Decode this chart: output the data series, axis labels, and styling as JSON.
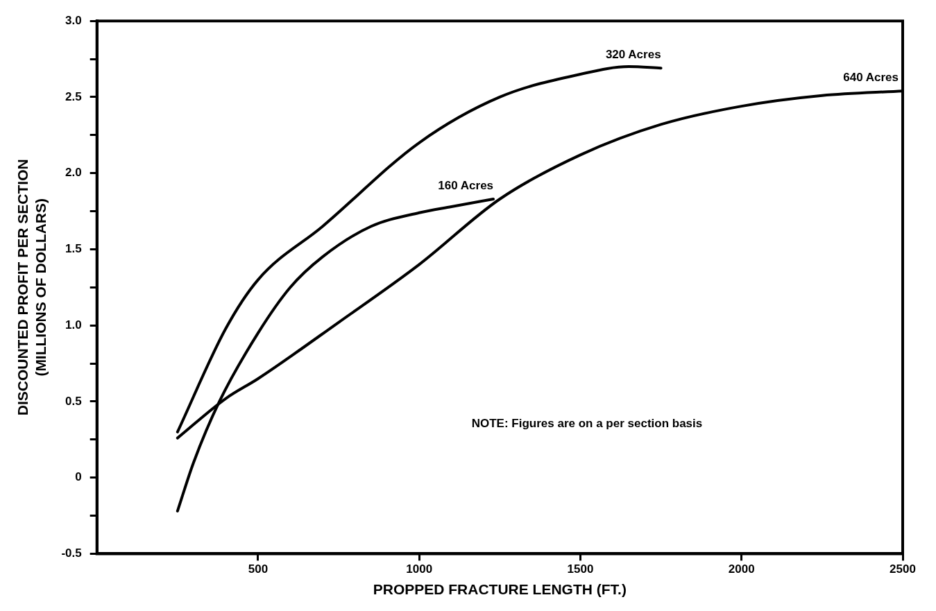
{
  "chart_data": {
    "type": "line",
    "xlabel": "PROPPED FRACTURE LENGTH (FT.)",
    "ylabel": "DISCOUNTED PROFIT PER SECTION\n(MILLIONS OF DOLLARS)",
    "xlim": [
      0,
      2500
    ],
    "xticks": [
      500,
      1000,
      1500,
      2000,
      2500
    ],
    "ylim": [
      -0.5,
      3
    ],
    "yticks": [
      -0.5,
      {
        "value": -0.25,
        "label": null
      },
      {
        "value": 0,
        "label": "0"
      },
      {
        "value": 0.25,
        "label": null
      },
      0.5,
      {
        "value": 0.75,
        "label": null
      },
      {
        "value": 1,
        "label": "1.0"
      },
      {
        "value": 1.25,
        "label": null
      },
      1.5,
      {
        "value": 1.75,
        "label": null
      },
      {
        "value": 2,
        "label": "2.0"
      },
      {
        "value": 2.25,
        "label": null
      },
      2.5,
      {
        "value": 2.75,
        "label": null
      },
      {
        "value": 3,
        "label": "3.0"
      }
    ],
    "grid": false,
    "legend": false,
    "marker": "none",
    "line_style": "solid",
    "annotations": [
      "NOTE: Figures are on a per section basis"
    ],
    "series": [
      {
        "name": "320 Acres",
        "color": "#000000",
        "x": [
          250,
          400,
          500,
          700,
          1000,
          1250,
          1500,
          1650,
          1750
        ],
        "values": [
          0.3,
          0.98,
          1.3,
          1.65,
          2.2,
          2.5,
          2.65,
          2.7,
          2.69
        ]
      },
      {
        "name": "160 Acres",
        "color": "#000000",
        "x": [
          250,
          300,
          380,
          500,
          600,
          700,
          850,
          1000,
          1100,
          1230
        ],
        "values": [
          -0.22,
          0.1,
          0.5,
          0.95,
          1.25,
          1.45,
          1.65,
          1.74,
          1.78,
          1.83
        ]
      },
      {
        "name": "640 Acres",
        "color": "#000000",
        "x": [
          250,
          400,
          500,
          750,
          1000,
          1250,
          1500,
          1750,
          2000,
          2250,
          2500
        ],
        "values": [
          0.26,
          0.52,
          0.65,
          1.02,
          1.4,
          1.83,
          2.12,
          2.32,
          2.44,
          2.51,
          2.54
        ]
      }
    ]
  }
}
